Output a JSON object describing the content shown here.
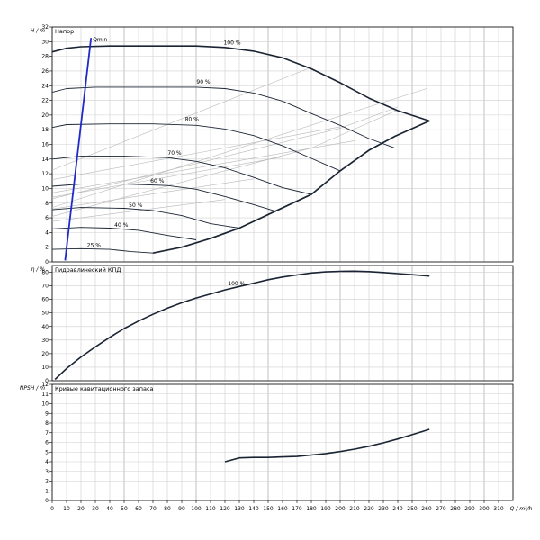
{
  "chart_data": {
    "type": "line",
    "grid": true,
    "x_axis": {
      "label": "Q / m³/h",
      "min": 0,
      "max": 320,
      "step": 10
    },
    "panels": [
      {
        "id": "head",
        "title": "Напор",
        "y_label": "H / m",
        "y_min": 0,
        "y_max": 32,
        "y_tick_step": 2,
        "series": [
          {
            "name": "100 %",
            "points": [
              [
                0,
                28.6
              ],
              [
                10,
                29.1
              ],
              [
                20,
                29.3
              ],
              [
                40,
                29.4
              ],
              [
                60,
                29.4
              ],
              [
                80,
                29.4
              ],
              [
                100,
                29.4
              ],
              [
                120,
                29.2
              ],
              [
                140,
                28.7
              ],
              [
                160,
                27.8
              ],
              [
                180,
                26.3
              ],
              [
                200,
                24.4
              ],
              [
                220,
                22.3
              ],
              [
                240,
                20.6
              ],
              [
                262,
                19.2
              ]
            ]
          },
          {
            "name": "90 %",
            "points": [
              [
                0,
                23.1
              ],
              [
                10,
                23.6
              ],
              [
                30,
                23.8
              ],
              [
                60,
                23.8
              ],
              [
                100,
                23.8
              ],
              [
                120,
                23.6
              ],
              [
                140,
                23
              ],
              [
                160,
                21.9
              ],
              [
                180,
                20.2
              ],
              [
                200,
                18.6
              ],
              [
                220,
                16.8
              ],
              [
                238,
                15.5
              ]
            ]
          },
          {
            "name": "80 %",
            "points": [
              [
                0,
                18.3
              ],
              [
                10,
                18.7
              ],
              [
                40,
                18.8
              ],
              [
                70,
                18.8
              ],
              [
                100,
                18.6
              ],
              [
                120,
                18.1
              ],
              [
                140,
                17.2
              ],
              [
                160,
                15.8
              ],
              [
                180,
                14.1
              ],
              [
                200,
                12.4
              ]
            ]
          },
          {
            "name": "70 %",
            "points": [
              [
                0,
                14
              ],
              [
                20,
                14.4
              ],
              [
                50,
                14.4
              ],
              [
                80,
                14.2
              ],
              [
                100,
                13.7
              ],
              [
                120,
                12.8
              ],
              [
                140,
                11.5
              ],
              [
                160,
                10.1
              ],
              [
                180,
                9.2
              ]
            ]
          },
          {
            "name": "60 %",
            "points": [
              [
                0,
                10.3
              ],
              [
                20,
                10.6
              ],
              [
                50,
                10.6
              ],
              [
                80,
                10.4
              ],
              [
                100,
                9.9
              ],
              [
                120,
                8.9
              ],
              [
                140,
                7.8
              ],
              [
                155,
                6.9
              ]
            ]
          },
          {
            "name": "50 %",
            "points": [
              [
                0,
                7.1
              ],
              [
                20,
                7.4
              ],
              [
                50,
                7.3
              ],
              [
                70,
                7
              ],
              [
                90,
                6.3
              ],
              [
                110,
                5.2
              ],
              [
                130,
                4.6
              ]
            ]
          },
          {
            "name": "40 %",
            "points": [
              [
                0,
                4.5
              ],
              [
                20,
                4.7
              ],
              [
                40,
                4.6
              ],
              [
                60,
                4.3
              ],
              [
                80,
                3.6
              ],
              [
                100,
                3
              ]
            ]
          },
          {
            "name": "25 %",
            "points": [
              [
                0,
                1.7
              ],
              [
                20,
                1.8
              ],
              [
                40,
                1.7
              ],
              [
                55,
                1.4
              ],
              [
                70,
                1.2
              ]
            ]
          }
        ],
        "system_curve": [
          [
            70,
            1.2
          ],
          [
            90,
            2
          ],
          [
            110,
            3.2
          ],
          [
            130,
            4.6
          ],
          [
            155,
            6.9
          ],
          [
            180,
            9.2
          ],
          [
            200,
            12.4
          ],
          [
            220,
            15.2
          ],
          [
            238,
            17.1
          ],
          [
            262,
            19.2
          ]
        ],
        "efficiency_guides": [
          [
            [
              0,
              6.2
            ],
            [
              180,
              15.5
            ],
            [
              240,
              20.7
            ]
          ],
          [
            [
              0,
              7.4
            ],
            [
              260,
              23.6
            ]
          ],
          [
            [
              0,
              8.6
            ],
            [
              200,
              18.2
            ],
            [
              240,
              21.1
            ]
          ],
          [
            [
              0,
              9.4
            ],
            [
              210,
              16.5
            ]
          ],
          [
            [
              0,
              12.5
            ],
            [
              180,
              26.5
            ]
          ],
          [
            [
              0,
              11.2
            ],
            [
              200,
              18.4
            ]
          ],
          [
            [
              0,
              8.8
            ],
            [
              160,
              14.3
            ]
          ],
          [
            [
              0,
              7.2
            ],
            [
              140,
              11.3
            ]
          ],
          [
            [
              0,
              5.5
            ],
            [
              120,
              8.5
            ]
          ]
        ],
        "qmin": {
          "label": "Qmin",
          "points": [
            [
              9,
              0.2
            ],
            [
              27,
              30.5
            ]
          ]
        }
      },
      {
        "id": "eff",
        "title": "Гидравлический КПД",
        "y_label": "η / %",
        "y_min": 0,
        "y_max": 85,
        "y_tick_step": 10,
        "series": [
          {
            "name": "100 %",
            "points": [
              [
                2,
                1
              ],
              [
                10,
                9
              ],
              [
                20,
                17.5
              ],
              [
                30,
                25
              ],
              [
                40,
                32
              ],
              [
                50,
                38.5
              ],
              [
                60,
                44
              ],
              [
                70,
                49
              ],
              [
                80,
                53.5
              ],
              [
                90,
                57.5
              ],
              [
                100,
                61
              ],
              [
                110,
                64
              ],
              [
                120,
                67
              ],
              [
                130,
                69.5
              ],
              [
                140,
                72
              ],
              [
                150,
                74.5
              ],
              [
                160,
                76.5
              ],
              [
                170,
                78
              ],
              [
                180,
                79.5
              ],
              [
                190,
                80.3
              ],
              [
                200,
                80.7
              ],
              [
                210,
                80.8
              ],
              [
                220,
                80.5
              ],
              [
                230,
                79.8
              ],
              [
                240,
                79
              ],
              [
                250,
                78.2
              ],
              [
                262,
                77.2
              ]
            ]
          }
        ]
      },
      {
        "id": "npsh",
        "title": "Кривые кавитационного запаса",
        "y_label": "NPSH / m",
        "y_min": 0,
        "y_max": 12,
        "y_tick_step": 1,
        "series": [
          {
            "name": "",
            "points": [
              [
                120,
                4
              ],
              [
                125,
                4.2
              ],
              [
                130,
                4.4
              ],
              [
                140,
                4.45
              ],
              [
                150,
                4.45
              ],
              [
                160,
                4.5
              ],
              [
                170,
                4.55
              ],
              [
                180,
                4.7
              ],
              [
                190,
                4.85
              ],
              [
                200,
                5.05
              ],
              [
                210,
                5.3
              ],
              [
                220,
                5.6
              ],
              [
                230,
                5.95
              ],
              [
                240,
                6.35
              ],
              [
                250,
                6.8
              ],
              [
                262,
                7.35
              ]
            ]
          }
        ]
      }
    ]
  }
}
